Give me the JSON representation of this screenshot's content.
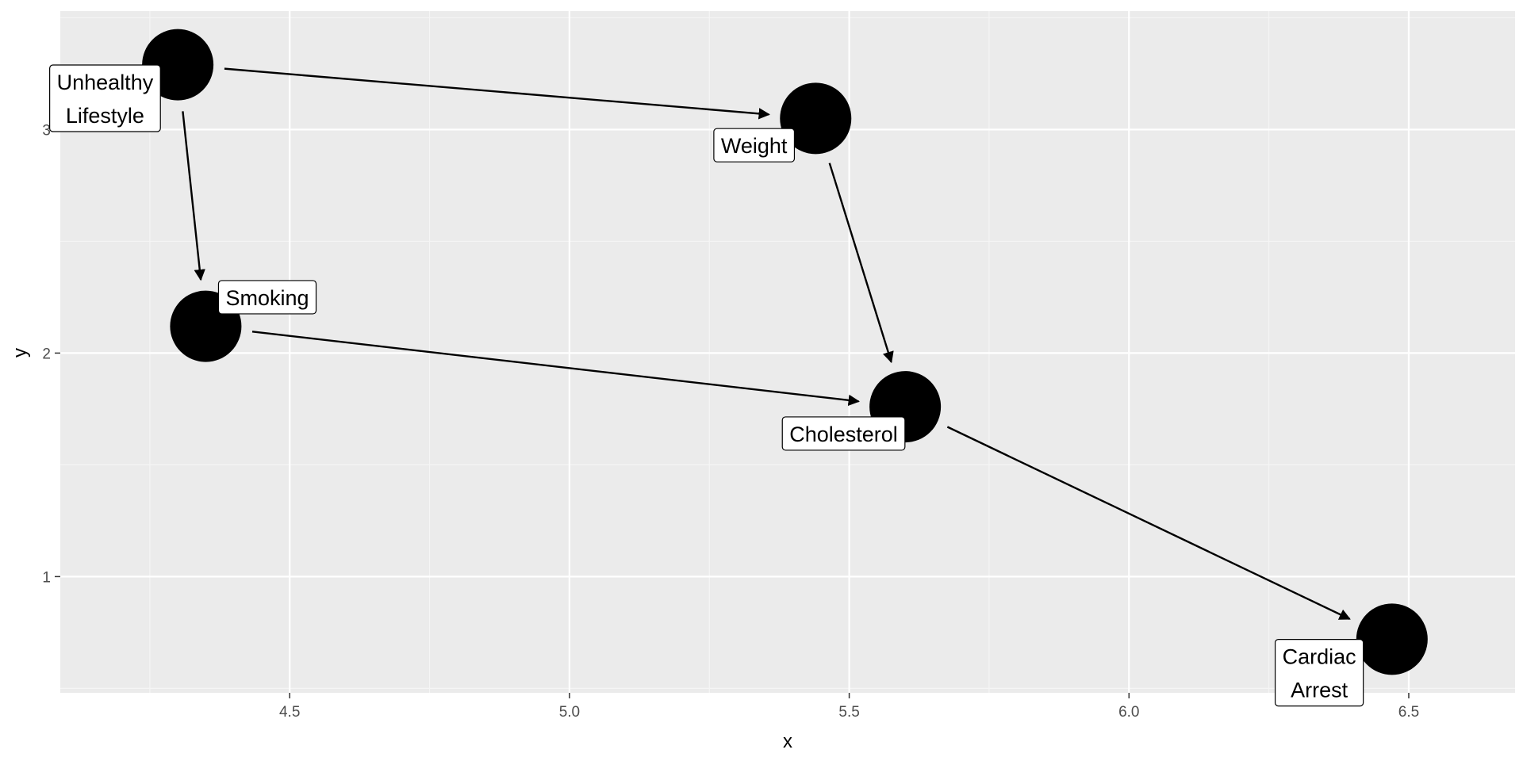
{
  "chart_data": {
    "type": "scatter",
    "title": "",
    "xlabel": "x",
    "ylabel": "y",
    "xlim": [
      4.09,
      6.69
    ],
    "ylim": [
      0.48,
      3.53
    ],
    "x_ticks": [
      {
        "value": 4.5,
        "label": "4.5"
      },
      {
        "value": 5.0,
        "label": "5.0"
      },
      {
        "value": 5.5,
        "label": "5.5"
      },
      {
        "value": 6.0,
        "label": "6.0"
      },
      {
        "value": 6.5,
        "label": "6.5"
      }
    ],
    "y_ticks": [
      {
        "value": 1,
        "label": "1"
      },
      {
        "value": 2,
        "label": "2"
      },
      {
        "value": 3,
        "label": "3"
      }
    ],
    "grid": true,
    "colors": {
      "panel": "#ebebeb",
      "grid_major": "#ffffff",
      "grid_minor": "#f5f5f5",
      "node": "#000000",
      "edge": "#000000",
      "label_fill": "#ffffff",
      "label_border": "#000000",
      "tick_text": "#4d4d4d"
    },
    "nodes": [
      {
        "id": "unhealthy",
        "lines": [
          "Unhealthy",
          "Lifestyle"
        ],
        "x": 4.3,
        "y": 3.29,
        "label_x": 4.17,
        "label_y": 3.14
      },
      {
        "id": "weight",
        "lines": [
          "Weight"
        ],
        "x": 5.44,
        "y": 3.05,
        "label_x": 5.33,
        "label_y": 2.93
      },
      {
        "id": "smoking",
        "lines": [
          "Smoking"
        ],
        "x": 4.35,
        "y": 2.12,
        "label_x": 4.46,
        "label_y": 2.25
      },
      {
        "id": "cholesterol",
        "lines": [
          "Cholesterol"
        ],
        "x": 5.6,
        "y": 1.76,
        "label_x": 5.49,
        "label_y": 1.64
      },
      {
        "id": "cardiac",
        "lines": [
          "Cardiac",
          "Arrest"
        ],
        "x": 6.47,
        "y": 0.72,
        "label_x": 6.34,
        "label_y": 0.57
      }
    ],
    "edges": [
      {
        "from": "unhealthy",
        "to": "weight"
      },
      {
        "from": "unhealthy",
        "to": "smoking"
      },
      {
        "from": "weight",
        "to": "cholesterol"
      },
      {
        "from": "smoking",
        "to": "cholesterol"
      },
      {
        "from": "cholesterol",
        "to": "cardiac"
      }
    ]
  }
}
